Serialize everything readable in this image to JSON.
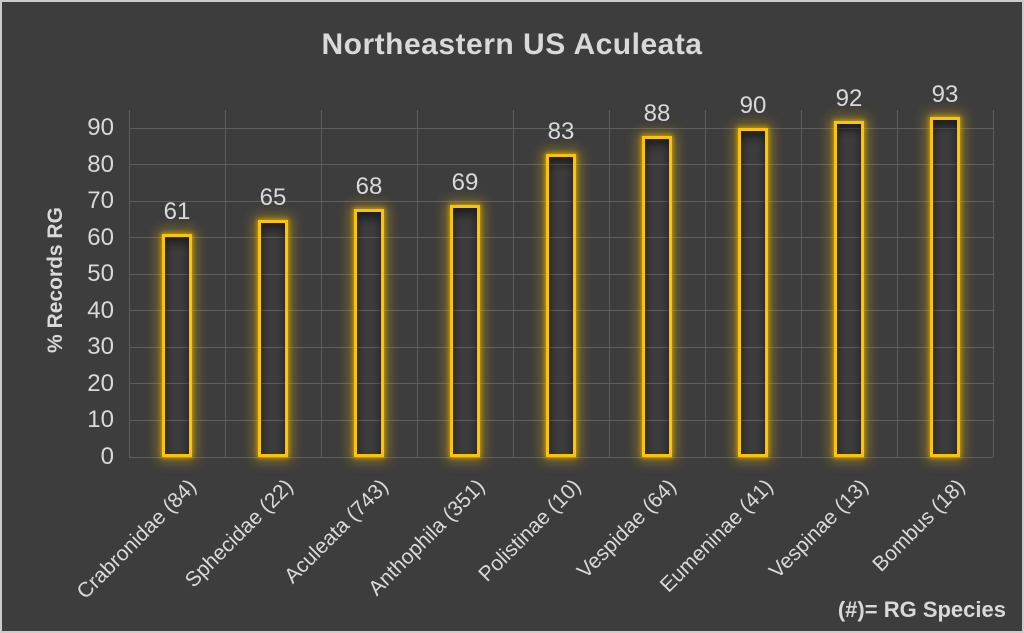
{
  "chart_data": {
    "type": "bar",
    "title": "Northeastern US Aculeata",
    "ylabel": "% Records RG",
    "xlabel": "",
    "categories": [
      "Crabronidae (84)",
      "Sphecidae (22)",
      "Aculeata (743)",
      "Anthophila (351)",
      "Polistinae (10)",
      "Vespidae (64)",
      "Eumeninae (41)",
      "Vespinae (13)",
      "Bombus (18)"
    ],
    "values": [
      61,
      65,
      68,
      69,
      83,
      88,
      90,
      92,
      93
    ],
    "ylim": [
      0,
      95
    ],
    "yticks": [
      0,
      10,
      20,
      30,
      40,
      50,
      60,
      70,
      80,
      90
    ],
    "grid": true,
    "legend_position": "none",
    "data_labels": true,
    "note": "(#)= RG Species"
  },
  "colors": {
    "background": "#3d3d3d",
    "frame_border": "#cccccc",
    "gridline": "#5e5e5e",
    "text": "#d9d9d9",
    "bar_stroke": "#ffc400"
  }
}
